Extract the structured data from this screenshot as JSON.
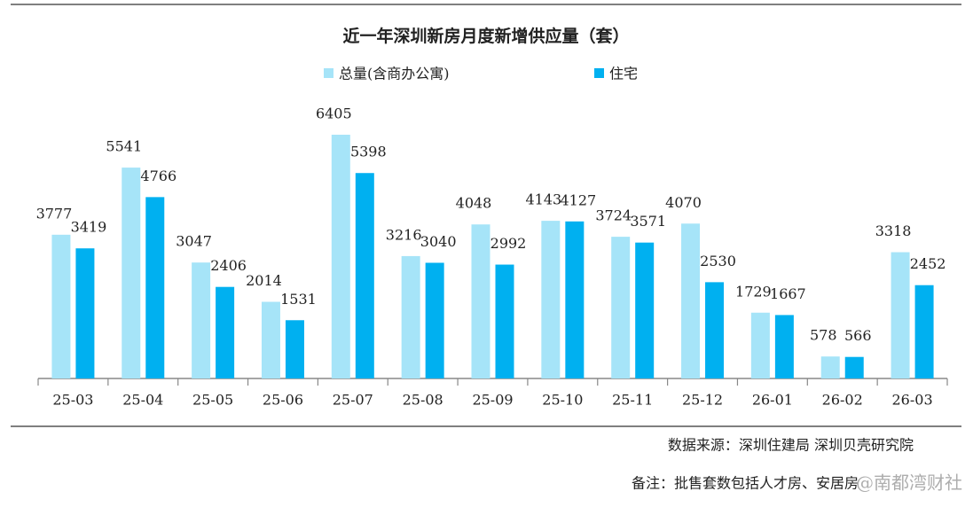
{
  "chart_data": {
    "type": "bar",
    "title": "近一年深圳新房月度新增供应量（套）",
    "categories": [
      "25-03",
      "25-04",
      "25-05",
      "25-06",
      "25-07",
      "25-08",
      "25-09",
      "25-10",
      "25-11",
      "25-12",
      "26-01",
      "26-02",
      "26-03"
    ],
    "series": [
      {
        "name": "总量(含商办公寓)",
        "color": "#a6e4f8",
        "values": [
          3777,
          5541,
          3047,
          2014,
          6405,
          3216,
          4048,
          4143,
          3724,
          4070,
          1729,
          578,
          3318
        ]
      },
      {
        "name": "住宅",
        "color": "#00b0f0",
        "values": [
          3419,
          4766,
          2406,
          1531,
          5398,
          3040,
          2992,
          4127,
          3571,
          2530,
          1667,
          566,
          2452
        ]
      }
    ],
    "legend": "top",
    "source": "数据来源：深圳住建局 深圳贝壳研究院",
    "note": "备注：批售套数包括人才房、安居房",
    "watermark": "@南都湾财社"
  }
}
